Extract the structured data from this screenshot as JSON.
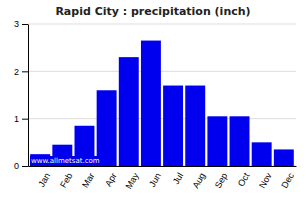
{
  "chart_data": {
    "type": "bar",
    "title": "Rapid City : precipitation (inch)",
    "categories": [
      "Jan",
      "Feb",
      "Mar",
      "Apr",
      "May",
      "Jun",
      "Jul",
      "Aug",
      "Sep",
      "Oct",
      "Nov",
      "Dec"
    ],
    "values": [
      0.25,
      0.45,
      0.85,
      1.6,
      2.3,
      2.65,
      1.7,
      1.7,
      1.05,
      1.05,
      0.5,
      0.35
    ],
    "color": "#0000EE",
    "ylim": [
      0,
      3
    ],
    "yticks": [
      0,
      1,
      2,
      3
    ],
    "grid": true,
    "annotations": [
      "www.allmetsat.com"
    ]
  }
}
